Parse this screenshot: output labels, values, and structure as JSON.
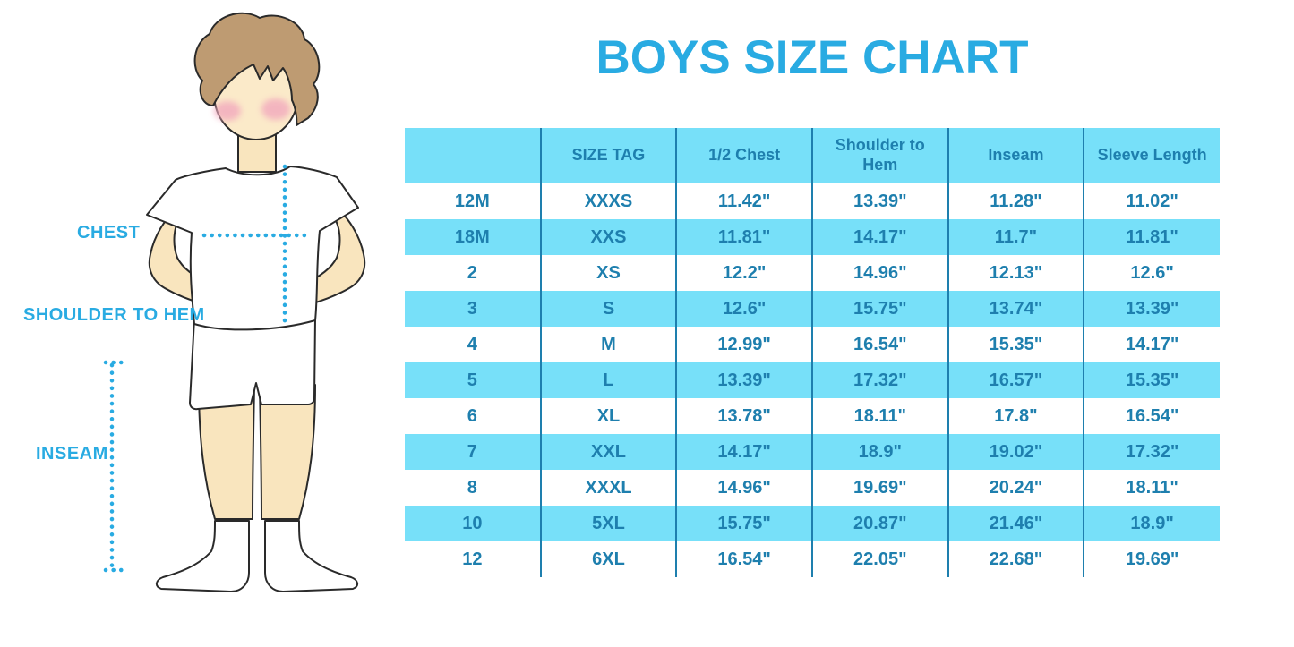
{
  "title": "BOYS SIZE CHART",
  "figure_labels": {
    "chest": "CHEST",
    "shoulder_to_hem": "SHOULDER TO HEM",
    "inseam": "INSEAM"
  },
  "colors": {
    "accent_blue": "#29ABE2",
    "row_cyan": "#77E0F9",
    "table_ink": "#1E7FAE",
    "hair": "#BE9B72",
    "skin": "#F9E5BE",
    "face": "#FBEAC9",
    "cheek": "#F2A9BD",
    "outline": "#2A2A2A"
  },
  "chart_data": {
    "type": "table",
    "title": "BOYS SIZE CHART",
    "columns": [
      "",
      "SIZE TAG",
      "1/2 Chest",
      "Shoulder to Hem",
      "Inseam",
      "Sleeve Length"
    ],
    "rows": [
      [
        "12M",
        "XXXS",
        "11.42\"",
        "13.39\"",
        "11.28\"",
        "11.02\""
      ],
      [
        "18M",
        "XXS",
        "11.81\"",
        "14.17\"",
        "11.7\"",
        "11.81\""
      ],
      [
        "2",
        "XS",
        "12.2\"",
        "14.96\"",
        "12.13\"",
        "12.6\""
      ],
      [
        "3",
        "S",
        "12.6\"",
        "15.75\"",
        "13.74\"",
        "13.39\""
      ],
      [
        "4",
        "M",
        "12.99\"",
        "16.54\"",
        "15.35\"",
        "14.17\""
      ],
      [
        "5",
        "L",
        "13.39\"",
        "17.32\"",
        "16.57\"",
        "15.35\""
      ],
      [
        "6",
        "XL",
        "13.78\"",
        "18.11\"",
        "17.8\"",
        "16.54\""
      ],
      [
        "7",
        "XXL",
        "14.17\"",
        "18.9\"",
        "19.02\"",
        "17.32\""
      ],
      [
        "8",
        "XXXL",
        "14.96\"",
        "19.69\"",
        "20.24\"",
        "18.11\""
      ],
      [
        "10",
        "5XL",
        "15.75\"",
        "20.87\"",
        "21.46\"",
        "18.9\""
      ],
      [
        "12",
        "6XL",
        "16.54\"",
        "22.05\"",
        "22.68\"",
        "19.69\""
      ]
    ]
  }
}
